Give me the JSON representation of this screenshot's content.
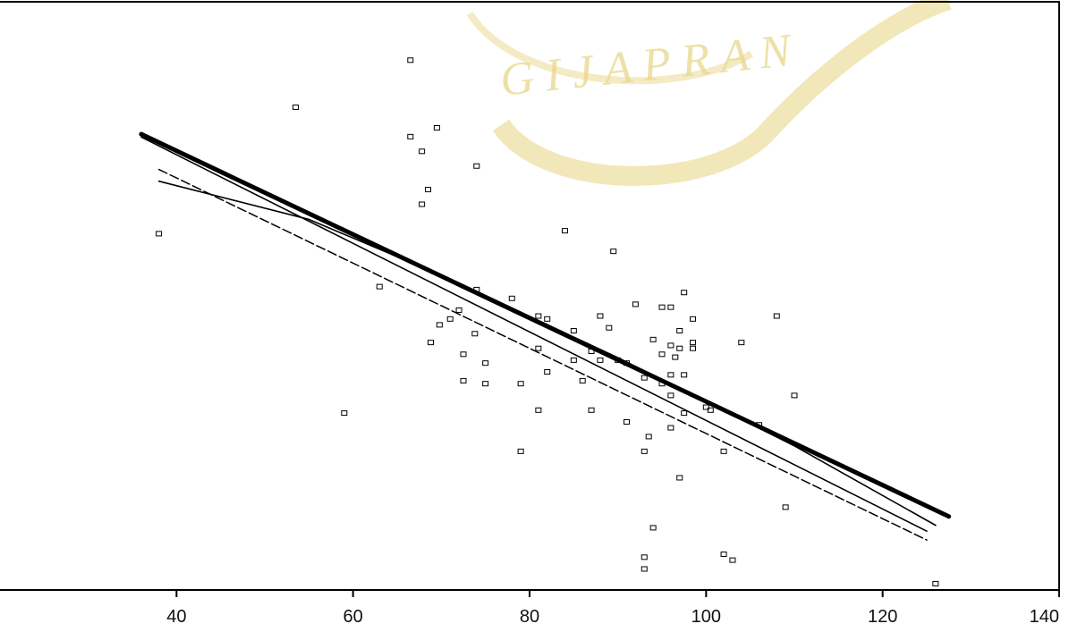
{
  "chart_data": {
    "type": "scatter",
    "title": "",
    "xlabel": "",
    "ylabel": "",
    "xlim": [
      20,
      140
    ],
    "ylim": [
      0,
      100
    ],
    "x_ticks": [
      40,
      60,
      80,
      100,
      120,
      140
    ],
    "grid": false,
    "legend": "none",
    "watermark": {
      "text": "G I J A P R A N",
      "color": "#e8d78a"
    },
    "points": [
      {
        "x": 66.5,
        "y": 90.0
      },
      {
        "x": 53.5,
        "y": 82.0
      },
      {
        "x": 69.5,
        "y": 78.5
      },
      {
        "x": 66.5,
        "y": 77.0
      },
      {
        "x": 67.8,
        "y": 74.5
      },
      {
        "x": 74.0,
        "y": 72.0
      },
      {
        "x": 68.5,
        "y": 68.0
      },
      {
        "x": 67.8,
        "y": 65.5
      },
      {
        "x": 38.0,
        "y": 60.5
      },
      {
        "x": 63.0,
        "y": 51.5
      },
      {
        "x": 84.0,
        "y": 61.0
      },
      {
        "x": 89.5,
        "y": 57.5
      },
      {
        "x": 74.0,
        "y": 51.0
      },
      {
        "x": 78.0,
        "y": 49.5
      },
      {
        "x": 72.0,
        "y": 47.5
      },
      {
        "x": 71.0,
        "y": 46.0
      },
      {
        "x": 69.8,
        "y": 45.0
      },
      {
        "x": 73.8,
        "y": 43.5
      },
      {
        "x": 68.8,
        "y": 42.0
      },
      {
        "x": 81.0,
        "y": 46.5
      },
      {
        "x": 82.0,
        "y": 46.0
      },
      {
        "x": 85.0,
        "y": 44.0
      },
      {
        "x": 88.0,
        "y": 46.5
      },
      {
        "x": 89.0,
        "y": 44.5
      },
      {
        "x": 92.0,
        "y": 48.5
      },
      {
        "x": 95.0,
        "y": 48.0
      },
      {
        "x": 96.0,
        "y": 48.0
      },
      {
        "x": 97.5,
        "y": 50.5
      },
      {
        "x": 98.5,
        "y": 46.0
      },
      {
        "x": 97.0,
        "y": 44.0
      },
      {
        "x": 94.0,
        "y": 42.5
      },
      {
        "x": 96.0,
        "y": 41.5
      },
      {
        "x": 97.0,
        "y": 41.0
      },
      {
        "x": 95.0,
        "y": 40.0
      },
      {
        "x": 96.5,
        "y": 39.5
      },
      {
        "x": 98.5,
        "y": 42.0
      },
      {
        "x": 98.5,
        "y": 41.0
      },
      {
        "x": 104.0,
        "y": 42.0
      },
      {
        "x": 108.0,
        "y": 46.5
      },
      {
        "x": 72.5,
        "y": 40.0
      },
      {
        "x": 75.0,
        "y": 38.5
      },
      {
        "x": 81.0,
        "y": 41.0
      },
      {
        "x": 85.0,
        "y": 39.0
      },
      {
        "x": 87.0,
        "y": 40.5
      },
      {
        "x": 88.0,
        "y": 39.0
      },
      {
        "x": 90.0,
        "y": 39.0
      },
      {
        "x": 91.0,
        "y": 38.5
      },
      {
        "x": 82.0,
        "y": 37.0
      },
      {
        "x": 72.5,
        "y": 35.5
      },
      {
        "x": 75.0,
        "y": 35.0
      },
      {
        "x": 79.0,
        "y": 35.0
      },
      {
        "x": 86.0,
        "y": 35.5
      },
      {
        "x": 93.0,
        "y": 36.0
      },
      {
        "x": 95.0,
        "y": 35.0
      },
      {
        "x": 96.0,
        "y": 36.5
      },
      {
        "x": 97.5,
        "y": 36.5
      },
      {
        "x": 96.0,
        "y": 33.0
      },
      {
        "x": 100.0,
        "y": 31.0
      },
      {
        "x": 110.0,
        "y": 33.0
      },
      {
        "x": 59.0,
        "y": 30.0
      },
      {
        "x": 81.0,
        "y": 30.5
      },
      {
        "x": 87.0,
        "y": 30.5
      },
      {
        "x": 97.5,
        "y": 30.0
      },
      {
        "x": 100.5,
        "y": 30.5
      },
      {
        "x": 91.0,
        "y": 28.5
      },
      {
        "x": 96.0,
        "y": 27.5
      },
      {
        "x": 106.0,
        "y": 28.0
      },
      {
        "x": 93.5,
        "y": 26.0
      },
      {
        "x": 79.0,
        "y": 23.5
      },
      {
        "x": 93.0,
        "y": 23.5
      },
      {
        "x": 102.0,
        "y": 23.5
      },
      {
        "x": 97.0,
        "y": 19.0
      },
      {
        "x": 109.0,
        "y": 14.0
      },
      {
        "x": 94.0,
        "y": 10.5
      },
      {
        "x": 93.0,
        "y": 5.5
      },
      {
        "x": 102.0,
        "y": 6.0
      },
      {
        "x": 103.0,
        "y": 5.0
      },
      {
        "x": 93.0,
        "y": 3.5
      },
      {
        "x": 126.0,
        "y": 1.0
      }
    ],
    "lines": [
      {
        "style": "bold",
        "x": [
          36.0,
          127.5
        ],
        "y": [
          77.5,
          12.5
        ]
      },
      {
        "style": "solid",
        "x": [
          36.0,
          125.0
        ],
        "y": [
          77.0,
          10.0
        ]
      },
      {
        "style": "dashed",
        "x": [
          38.0,
          125.0
        ],
        "y": [
          71.5,
          8.5
        ]
      },
      {
        "style": "curve",
        "x": [
          38.0,
          55.0,
          70.0,
          90.0,
          110.0,
          126.0
        ],
        "y": [
          69.5,
          63.0,
          53.5,
          39.5,
          24.5,
          11.0
        ]
      }
    ]
  }
}
